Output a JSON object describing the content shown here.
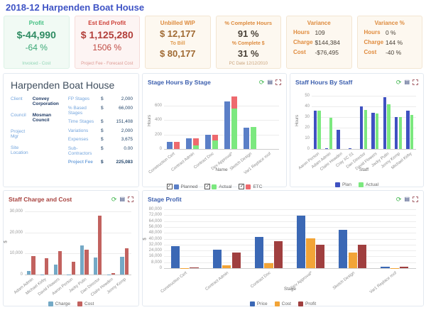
{
  "page_title": "2018-12 Harpenden Boat House",
  "icons": {
    "refresh_glyph": "⟳",
    "table_glyph": "▤"
  },
  "kpi_cards": {
    "profit": {
      "title": "Profit",
      "value": "$-44,990",
      "percent": "-64 %",
      "footer": "Invoiced - Cost"
    },
    "est_end_profit": {
      "title": "Est End Profit",
      "value": "$ 1,125,280",
      "percent": "1506 %",
      "footer": "Project Fee - Forecast Cost"
    },
    "unbilled_wip": {
      "title": "Unbilled WIP",
      "value": "$ 12,177",
      "sub_label": "To Bill",
      "value2": "$ 80,177"
    },
    "percent_complete": {
      "title": "% Complete Hours",
      "value": "91 %",
      "sub_label": "% Complete $",
      "value2": "31 %",
      "footer": "PC Date 12/12/2010"
    },
    "variance": {
      "title": "Variance",
      "rows": [
        {
          "label": "Hours",
          "value": "109"
        },
        {
          "label": "Charge",
          "value": "$144,384"
        },
        {
          "label": "Cost",
          "value": "-$76,495"
        }
      ]
    },
    "variance_pct": {
      "title": "Variance %",
      "rows": [
        {
          "label": "Hours",
          "value": "0 %"
        },
        {
          "label": "Charge",
          "value": "144 %"
        },
        {
          "label": "Cost",
          "value": "-40 %"
        }
      ]
    }
  },
  "project_panel": {
    "title": "Harpenden Boat House",
    "info": [
      {
        "label": "Client",
        "value": "Convey Corporation"
      },
      {
        "label": "Council",
        "value": "Mosman Council"
      },
      {
        "label": "Project Mgr",
        "value": ""
      },
      {
        "label": "Site Location",
        "value": ""
      }
    ],
    "fees": [
      {
        "label": "FP Stages",
        "currency": "$",
        "value": "2,000"
      },
      {
        "label": "% Based Stages",
        "currency": "$",
        "value": "66,000"
      },
      {
        "label": "Time Stages",
        "currency": "$",
        "value": "151,408"
      },
      {
        "label": "Variations",
        "currency": "$",
        "value": "2,000"
      },
      {
        "label": "Expenses",
        "currency": "$",
        "value": "3,675"
      },
      {
        "label": "Sub-Contractors",
        "currency": "$",
        "value": "0.00"
      },
      {
        "label": "Project Fee",
        "currency": "$",
        "value": "225,083"
      }
    ]
  },
  "chart_data": [
    {
      "id": "stage-hours-by-stage",
      "type": "bar",
      "title": "Stage Hours By Stage",
      "xlabel": "Name",
      "ylabel": "Hours",
      "ylim": [
        0,
        780
      ],
      "yticks": [
        0,
        200,
        400,
        600
      ],
      "grid": true,
      "legend_position": "bottom",
      "legend_checkbox": true,
      "categories": [
        "Construction Cert",
        "Contract Admin",
        "Contract Doc",
        "Dev Approval*",
        "Sketch Design",
        "Var1 Replace roof"
      ],
      "stacks": [
        [
          "Planned"
        ],
        [
          "Actual",
          "ETC"
        ]
      ],
      "series": [
        {
          "name": "Planned",
          "color": "#5b7fc7",
          "values": [
            95,
            145,
            200,
            655,
            290,
            0
          ]
        },
        {
          "name": "Actual",
          "color": "#7ce87f",
          "values": [
            0,
            48,
            115,
            555,
            305,
            0
          ]
        },
        {
          "name": "ETC",
          "color": "#ee6a6e",
          "values": [
            95,
            97,
            85,
            165,
            0,
            0
          ]
        }
      ]
    },
    {
      "id": "staff-hours-by-staff",
      "type": "bar",
      "title": "Staff Hours By Staff",
      "xlabel": "Staff",
      "ylabel": "Hours",
      "ylim": [
        0,
        53
      ],
      "yticks": [
        0,
        10,
        20,
        30,
        40,
        50
      ],
      "grid": true,
      "legend_position": "bottom",
      "legend_checkbox": false,
      "categories": [
        "Aaron Person",
        "Adam Admin",
        "Claire Howden",
        "Cray XC 01",
        "Dan Director",
        "David Flowers",
        "Jacky Putin",
        "Jenny Kemp",
        "Michael Kirby"
      ],
      "stacks": [
        [
          "Plan"
        ],
        [
          "Actual"
        ]
      ],
      "series": [
        {
          "name": "Plan",
          "color": "#3f51c1",
          "values": [
            36,
            0.5,
            18,
            0.5,
            40,
            34,
            48.5,
            30,
            36
          ]
        },
        {
          "name": "Actual",
          "color": "#7ce87f",
          "values": [
            36,
            29.5,
            0,
            0,
            36.5,
            33,
            42,
            30,
            32
          ]
        }
      ]
    },
    {
      "id": "staff-charge-and-cost",
      "type": "bar",
      "title": "Staff Charge and Cost",
      "xlabel": "",
      "ylabel": "$",
      "ylim": [
        0,
        31000
      ],
      "yticks": [
        0,
        10000,
        20000,
        30000
      ],
      "grid": true,
      "legend_position": "bottom",
      "legend_checkbox": false,
      "categories": [
        "Adam Admin",
        "Michael Kirby",
        "David Flowers",
        "Aaron Person",
        "Jacky Putin",
        "Dan Director",
        "Claire Howden",
        "Jenny Kemp"
      ],
      "stacks": [
        [
          "Charge"
        ],
        [
          "Cost"
        ]
      ],
      "series": [
        {
          "name": "Charge",
          "color": "#74a9c6",
          "values": [
            1800,
            150,
            4900,
            150,
            13700,
            8000,
            150,
            8500
          ]
        },
        {
          "name": "Cost",
          "color": "#c2625f",
          "values": [
            8800,
            7800,
            11000,
            6100,
            11700,
            28000,
            800,
            12400
          ]
        }
      ]
    },
    {
      "id": "stage-profit",
      "type": "bar",
      "title": "Stage Profit",
      "xlabel": "Stage",
      "ylabel": "$",
      "ylim": [
        0,
        80000
      ],
      "yticks": [
        0,
        8000,
        16000,
        24000,
        32000,
        40000,
        48000,
        56000,
        64000,
        72000,
        80000
      ],
      "grid": true,
      "legend_position": "bottom",
      "legend_checkbox": false,
      "categories": [
        "Construction Cert",
        "Contract Admin",
        "Contract Doc",
        "Dev Approval*",
        "Sketch Design",
        "Var1 Replace roof"
      ],
      "stacks": [
        [
          "Price"
        ],
        [
          "Cost"
        ],
        [
          "Profit"
        ]
      ],
      "series": [
        {
          "name": "Price",
          "color": "#3b68b5",
          "values": [
            30000,
            24800,
            42200,
            71000,
            52500,
            2200
          ]
        },
        {
          "name": "Cost",
          "color": "#f2a437",
          "values": [
            400,
            3500,
            6800,
            40500,
            21500,
            400
          ]
        },
        {
          "name": "Profit",
          "color": "#a03f3f",
          "values": [
            600,
            21500,
            36500,
            31500,
            32000,
            2200
          ]
        }
      ]
    }
  ]
}
